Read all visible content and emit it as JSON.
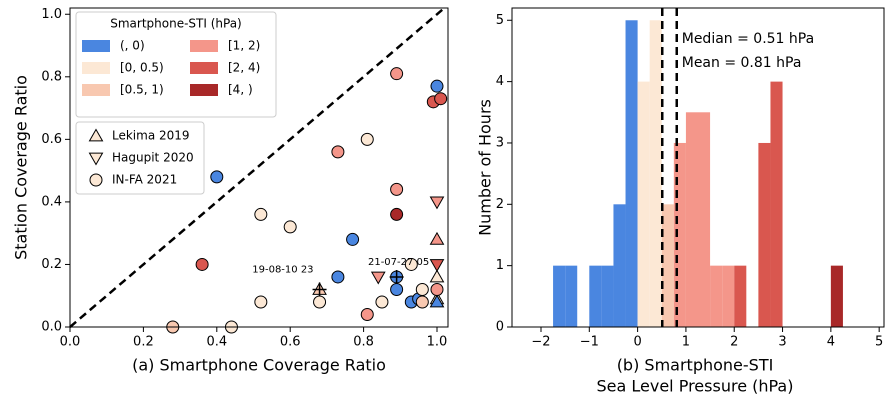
{
  "chart_data": [
    {
      "type": "scatter",
      "xlabel": "(a) Smartphone Coverage Ratio",
      "ylabel": "Station Coverage Ratio",
      "xlim": [
        0,
        1.03
      ],
      "ylim": [
        0,
        1.02
      ],
      "xticks": [
        {
          "value": 0,
          "label": "0.0"
        },
        0.2,
        0.4,
        0.6,
        0.8,
        {
          "value": 1,
          "label": "1.0"
        }
      ],
      "yticks": [
        {
          "value": 0,
          "label": "0.0"
        },
        0.2,
        0.4,
        0.6,
        0.8,
        {
          "value": 1,
          "label": "1.0"
        }
      ],
      "color_legend": {
        "title": "Smartphone-STI (hPa)",
        "items": [
          {
            "label": "(, 0)",
            "color": "#4a86e0"
          },
          {
            "label": "[0, 0.5)",
            "color": "#fce8d5"
          },
          {
            "label": "[0.5, 1)",
            "color": "#f8c8b0"
          },
          {
            "label": "[1, 2)",
            "color": "#f4968a"
          },
          {
            "label": "[2, 4)",
            "color": "#d9574f"
          },
          {
            "label": "[4, )",
            "color": "#a82828"
          }
        ]
      },
      "annotations": [
        "19-08-10 23",
        "21-07-27 05"
      ],
      "series": [
        {
          "name": "Lekima 2019",
          "marker": "triangle-up",
          "x": [
            0.68,
            1.0,
            1.0,
            1.0,
            1.0
          ],
          "y": [
            0.12,
            0.28,
            0.16,
            0.09,
            0.08
          ],
          "colors": [
            "#f8c8b0",
            "#f4968a",
            "#fce8d5",
            "#fce8d5",
            "#4a86e0"
          ]
        },
        {
          "name": "Hagupit 2020",
          "marker": "triangle-down",
          "x": [
            0.84,
            1.0,
            1.0
          ],
          "y": [
            0.16,
            0.4,
            0.2
          ],
          "colors": [
            "#f4968a",
            "#f4968a",
            "#d9574f"
          ]
        },
        {
          "name": "IN-FA 2021",
          "marker": "circle",
          "x": [
            0.4,
            0.28,
            0.44,
            0.36,
            0.52,
            0.52,
            0.6,
            0.68,
            0.73,
            0.73,
            0.77,
            0.81,
            0.81,
            0.85,
            0.89,
            0.89,
            0.89,
            0.89,
            0.89,
            0.93,
            0.93,
            0.95,
            0.96,
            0.96,
            1.0,
            0.99,
            1.01,
            1.0
          ],
          "y": [
            0.48,
            0.0,
            0.0,
            0.2,
            0.36,
            0.08,
            0.32,
            0.08,
            0.56,
            0.16,
            0.28,
            0.6,
            0.04,
            0.08,
            0.81,
            0.44,
            0.36,
            0.16,
            0.12,
            0.2,
            0.08,
            0.09,
            0.12,
            0.08,
            0.77,
            0.72,
            0.73,
            0.12
          ],
          "colors": [
            "#4a86e0",
            "#f8c8b0",
            "#fce8d5",
            "#d9574f",
            "#fce8d5",
            "#fce8d5",
            "#fce8d5",
            "#fce8d5",
            "#f4968a",
            "#4a86e0",
            "#4a86e0",
            "#fce8d5",
            "#f4968a",
            "#fce8d5",
            "#f4968a",
            "#f4968a",
            "#a82828",
            "#4a86e0",
            "#4a86e0",
            "#fce8d5",
            "#4a86e0",
            "#4a86e0",
            "#fce8d5",
            "#f8c8b0",
            "#4a86e0",
            "#d9574f",
            "#d9574f",
            "#f4968a"
          ]
        }
      ]
    },
    {
      "type": "histogram",
      "xlabel": [
        "(b) Smartphone-STI",
        "Sea Level Pressure (hPa)"
      ],
      "ylabel": "Number of Hours",
      "xlim": [
        -2.6,
        5.1
      ],
      "ylim": [
        0,
        5.2
      ],
      "xticks": [
        {
          "value": -2,
          "label": "−2"
        },
        {
          "value": -1,
          "label": "−1"
        },
        0,
        1,
        2,
        3,
        4,
        5
      ],
      "yticks": [
        0,
        1,
        2,
        3,
        4,
        5
      ],
      "bins": [
        -1.75,
        -1.5,
        -1.25,
        -1,
        -0.75,
        -0.5,
        -0.25,
        0,
        0.25,
        0.5,
        0.75,
        1,
        1.25,
        1.5,
        1.75,
        2,
        2.25,
        2.5,
        2.75,
        3,
        3.25,
        3.5,
        3.75,
        4,
        4.25
      ],
      "counts": [
        1,
        1,
        0,
        1,
        1,
        2,
        5,
        4,
        5,
        2,
        3,
        3.5,
        3.5,
        1,
        1,
        1,
        0,
        3,
        4,
        0,
        0,
        0,
        0,
        1
      ],
      "colors": [
        "#4a86e0",
        "#4a86e0",
        "#4a86e0",
        "#4a86e0",
        "#4a86e0",
        "#4a86e0",
        "#4a86e0",
        "#fce8d5",
        "#fce8d5",
        "#f8c8b0",
        "#f4968a",
        "#f4968a",
        "#f4968a",
        "#f4968a",
        "#f4968a",
        "#d9574f",
        "#d9574f",
        "#d9574f",
        "#d9574f",
        "#d9574f",
        "#d9574f",
        "#d9574f",
        "#d9574f",
        "#a82828"
      ],
      "median": 0.51,
      "mean": 0.81,
      "median_label": "Median = 0.51 hPa",
      "mean_label": "Mean = 0.81 hPa"
    }
  ]
}
